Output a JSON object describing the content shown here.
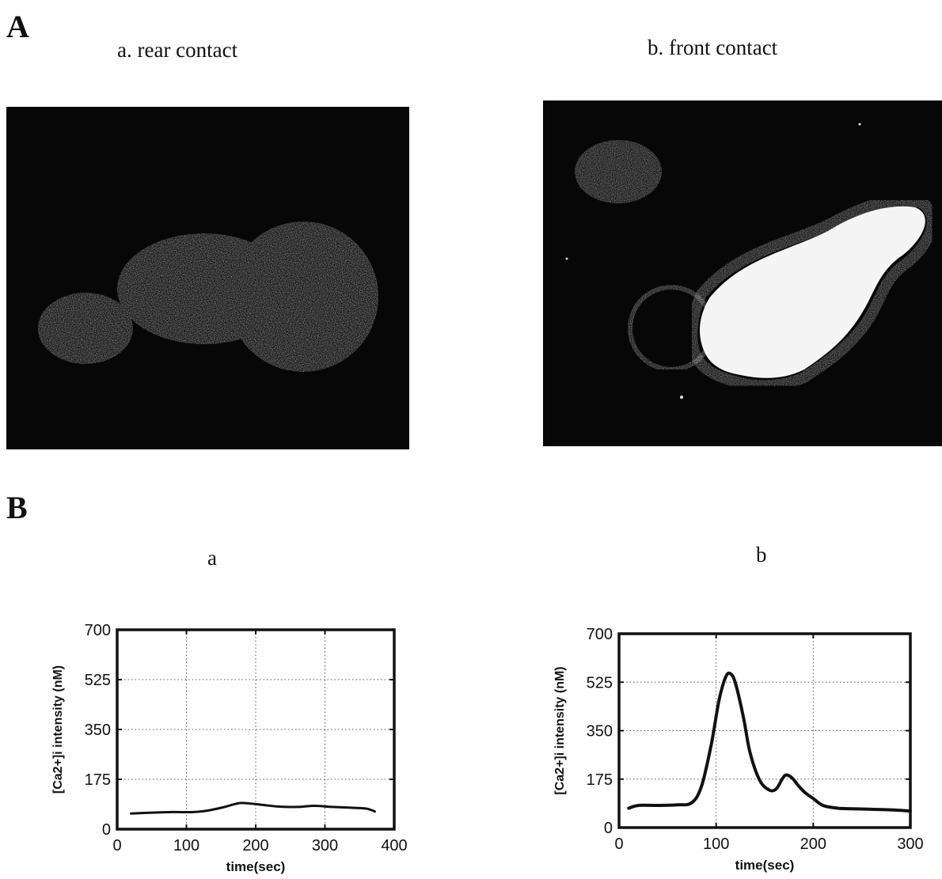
{
  "panel_labels": {
    "A": "A",
    "B": "B"
  },
  "micrographs": {
    "a": {
      "caption": "a. rear contact"
    },
    "b": {
      "caption": "b. front contact"
    }
  },
  "chart_captions": {
    "a": "a",
    "b": "b"
  },
  "chart_data": [
    {
      "type": "line",
      "title": "a",
      "xlabel": "time(sec)",
      "ylabel": "[Ca2+]i intensity (nM)",
      "xlim": [
        0,
        400
      ],
      "ylim": [
        0,
        700
      ],
      "xticks": [
        0,
        100,
        200,
        300,
        400
      ],
      "yticks": [
        0,
        175,
        350,
        525,
        700
      ],
      "grid": true,
      "series": [
        {
          "x": [
            20,
            50,
            80,
            110,
            130,
            150,
            170,
            180,
            200,
            230,
            260,
            285,
            310,
            340,
            360,
            372
          ],
          "y": [
            55,
            58,
            60,
            60,
            65,
            75,
            88,
            92,
            88,
            80,
            78,
            82,
            78,
            75,
            72,
            62
          ]
        }
      ]
    },
    {
      "type": "line",
      "title": "b",
      "xlabel": "time(sec)",
      "ylabel": "[Ca2+]i intensity (nM)",
      "xlim": [
        0,
        300
      ],
      "ylim": [
        0,
        700
      ],
      "xticks": [
        0,
        100,
        200,
        300
      ],
      "yticks": [
        0,
        175,
        350,
        525,
        700
      ],
      "grid": true,
      "series": [
        {
          "x": [
            10,
            20,
            40,
            60,
            75,
            85,
            95,
            103,
            110,
            115,
            120,
            128,
            135,
            145,
            155,
            162,
            168,
            172,
            178,
            185,
            192,
            200,
            210,
            225,
            240,
            260,
            280,
            300
          ],
          "y": [
            70,
            80,
            80,
            82,
            90,
            150,
            300,
            460,
            545,
            555,
            520,
            400,
            270,
            170,
            135,
            140,
            175,
            190,
            180,
            150,
            125,
            105,
            80,
            70,
            68,
            66,
            64,
            60
          ]
        }
      ]
    }
  ]
}
